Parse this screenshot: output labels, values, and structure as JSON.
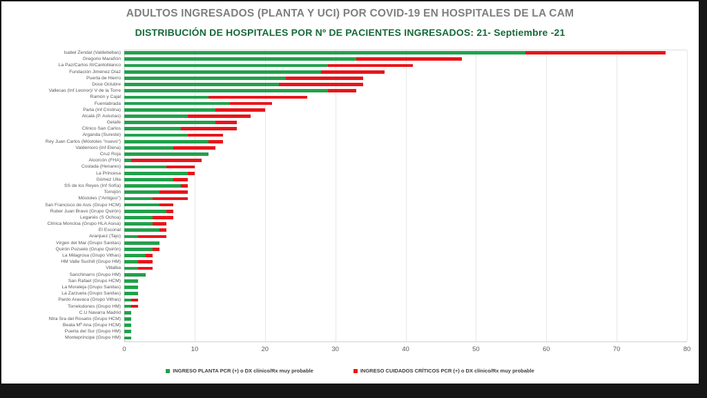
{
  "header": {
    "title": "ADULTOS INGRESADOS (PLANTA Y UCI) POR COVID-19 EN HOSPITALES DE LA CAM",
    "subtitle": "DISTRIBUCIÓN DE HOSPITALES POR Nº DE PACIENTES INGRESADOS: 21- Septiembre -21"
  },
  "colors": {
    "planta_green": "#21a14b",
    "criticos_red": "#e8151a",
    "title_gray": "#7f7f7f",
    "subtitle_green": "#156936"
  },
  "chart_data": {
    "type": "bar",
    "orientation": "horizontal",
    "stacked": true,
    "title": "ADULTOS INGRESADOS (PLANTA Y UCI) POR COVID-19 EN HOSPITALES DE LA CAM",
    "subtitle": "DISTRIBUCIÓN DE HOSPITALES POR Nº DE PACIENTES INGRESADOS: 21- Septiembre -21",
    "xlabel": "",
    "ylabel": "",
    "xlim": [
      0,
      80
    ],
    "xticks": [
      0,
      10,
      20,
      30,
      40,
      50,
      60,
      70,
      80
    ],
    "grid": true,
    "legend_position": "bottom",
    "categories": [
      "Isabel Zendal (Valdebebas)",
      "Gregorio Marañón",
      "La Paz/Carlos III/Cantoblanco",
      "Fundación Jiménez Díaz",
      "Puerta de Hierro",
      "Doce Octubre",
      "Vallecas (Inf Leonor)/ V de la Torre",
      "Ramón y Cajal",
      "Fuenlabrada",
      "Parla (Inf Cristina)",
      "Alcalá (P. Asturias)",
      "Getafe",
      "Clínico San Carlos",
      "Arganda (Sureste)",
      "Rey Juan Carlos (Móstoles \"nuevo\")",
      "Valdemoro (Inf Elena)",
      "Cruz Roja",
      "Alcorcón (FHA)",
      "Coslada (Henares)",
      "La Princesa",
      "Gómez Ulla",
      "SS de los Reyes (Inf Sofía)",
      "Torrejón",
      "Móstoles (\"Antiguo\")",
      "San Francisco de Asis (Grupo HCM)",
      "Ruber Juan Bravo (Grupo Quirón)",
      "Leganés (S Ochoa)",
      "Clínica Moncloa (Grupo HLA Asisa)",
      "El Escorial",
      "Aranjuez (Tajo)",
      "Virgen del Mar (Grupo Sanitas)",
      "Quirón Pozuelo (Grupo Quirón)",
      "La Milagrosa (Grupo Vithas)",
      "HM Valle Suchill (Grupo HM)",
      "Villalba",
      "Sanchinarro (Grupo HM)",
      "San Rafael (Grupo HCM)",
      "La Moraleja (Grupo Sanitas)",
      "La Zarzuela (Grupo Sanitas)",
      "Pardo Aravaca (Grupo Vithas)",
      "Torrelodones (Grupo HM)",
      "C.U Navarra Madrid",
      "Ntra Sra del Rosario (Grupo HCM)",
      "Beata Mª Ana (Grupo HCM)",
      "Puerta del Sur (Grupo HM)",
      "Montepríncipe (Grupo HM)"
    ],
    "series": [
      {
        "key": "planta",
        "name": "INGRESO PLANTA PCR (+) o DX clínico/Rx muy probable",
        "color": "#21a14b",
        "values": [
          57,
          33,
          29,
          28,
          23,
          22,
          29,
          12,
          15,
          13,
          9,
          13,
          8,
          9,
          12,
          7,
          12,
          1,
          6,
          9,
          7,
          8,
          5,
          4,
          5,
          6,
          4,
          4,
          5,
          2,
          5,
          4,
          3,
          2,
          2,
          3,
          2,
          2,
          2,
          1,
          1,
          1,
          1,
          1,
          1,
          1
        ]
      },
      {
        "key": "criticos",
        "name": "INGRESO CUIDADOS CRÍTICOS PCR (+) o DX clínico/Rx muy probable",
        "color": "#e8151a",
        "values": [
          20,
          15,
          12,
          9,
          11,
          12,
          4,
          14,
          6,
          7,
          9,
          3,
          8,
          5,
          2,
          6,
          0,
          10,
          4,
          1,
          2,
          1,
          4,
          5,
          2,
          1,
          3,
          2,
          1,
          4,
          0,
          1,
          1,
          2,
          2,
          0,
          0,
          0,
          0,
          1,
          1,
          0,
          0,
          0,
          0,
          0
        ]
      }
    ]
  }
}
